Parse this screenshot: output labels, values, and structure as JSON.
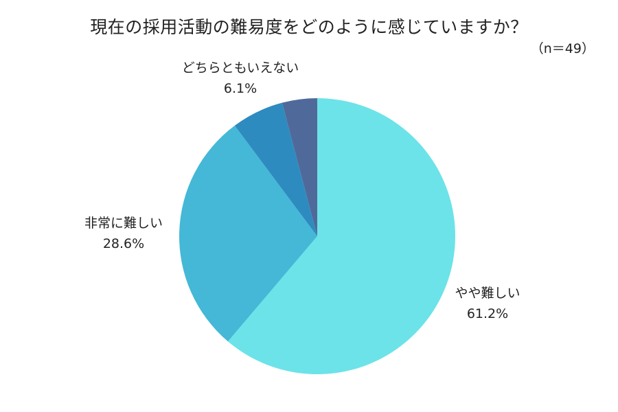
{
  "title": "現在の採用活動の難易度をどのように感じていますか？",
  "sample_size": "（n＝49）",
  "chart_data": {
    "type": "pie",
    "title": "現在の採用活動の難易度をどのように感じていますか？",
    "subtitle": "（n＝49）",
    "categories": [
      "やや難しい",
      "非常に難しい",
      "どちらともいえない",
      "(unlabeled)"
    ],
    "values": [
      61.2,
      28.6,
      6.1,
      4.1
    ],
    "unit": "%",
    "colors": [
      "#6ce3e8",
      "#44b8d6",
      "#2e8bbf",
      "#4f6a9a"
    ],
    "start_angle": "12 o'clock",
    "direction": "clockwise",
    "legend": "none (direct labels)"
  },
  "labels": {
    "yaya": {
      "name": "やや難しい",
      "value": "61.2%"
    },
    "hijou": {
      "name": "非常に難しい",
      "value": "28.6%"
    },
    "dochira": {
      "name": "どちらともいえない",
      "value": "6.1%"
    }
  }
}
